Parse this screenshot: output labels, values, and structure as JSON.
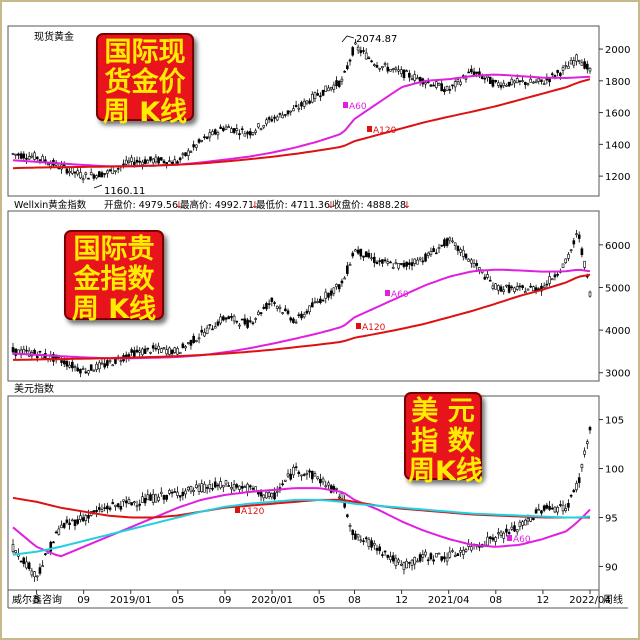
{
  "panels": {
    "gold": {
      "name": "现货黄金",
      "peak_label": "2074.87",
      "low_label": "1160.11",
      "ma60_label": "A60",
      "ma120_label": "A120",
      "badge": [
        "国际现",
        "货金价",
        "周  K线"
      ]
    },
    "index": {
      "info_prefix": "Wellxin黄金指数",
      "open_label": "开盘价: 4979.56",
      "high_label": "最高价: 4992.71",
      "low_label": "最低价: 4711.36",
      "close_label": "收盘价: 4888.28",
      "ma60_label": "A60",
      "ma120_label": "A120",
      "badge": [
        "国际贵",
        "金指数",
        "周  K线"
      ]
    },
    "usd": {
      "name": "美元指数",
      "ma60_label": "A60",
      "ma120_label": "A120",
      "badge": [
        "美  元",
        "指  数",
        "周K线"
      ]
    }
  },
  "footer": {
    "source": "威尔鑫咨询",
    "period": "周线"
  },
  "colors": {
    "candle": "#000000",
    "ma60": "#e020e0",
    "ma120": "#dd1111",
    "ma_cyan": "#20d0e0",
    "badge_bg": "#e8141b",
    "badge_text": "#ffec00"
  },
  "chart_data": [
    {
      "type": "line",
      "title": "现货黄金",
      "x": [
        "2018-03",
        "2018-05",
        "2018-07",
        "2018-09",
        "2018-11",
        "2019-01",
        "2019-03",
        "2019-05",
        "2019-07",
        "2019-09",
        "2019-11",
        "2020-01",
        "2020-03",
        "2020-05",
        "2020-07",
        "2020-08",
        "2020-10",
        "2020-12",
        "2021-02",
        "2021-04",
        "2021-06",
        "2021-08",
        "2021-10",
        "2021-12",
        "2022-02",
        "2022-03",
        "2022-04"
      ],
      "series": [
        {
          "name": "价格",
          "values": [
            1340,
            1320,
            1260,
            1200,
            1220,
            1290,
            1300,
            1290,
            1420,
            1510,
            1470,
            1560,
            1620,
            1720,
            1800,
            2020,
            1900,
            1850,
            1800,
            1740,
            1860,
            1780,
            1790,
            1790,
            1880,
            1950,
            1860
          ]
        },
        {
          "name": "A60",
          "values": [
            1300,
            1290,
            1280,
            1270,
            1262,
            1262,
            1266,
            1272,
            1286,
            1304,
            1322,
            1348,
            1380,
            1420,
            1470,
            1560,
            1660,
            1760,
            1800,
            1810,
            1830,
            1840,
            1830,
            1820,
            1818,
            1822,
            1826
          ]
        },
        {
          "name": "A120",
          "values": [
            1250,
            1254,
            1256,
            1258,
            1260,
            1262,
            1266,
            1272,
            1280,
            1292,
            1306,
            1322,
            1340,
            1362,
            1386,
            1420,
            1460,
            1500,
            1540,
            1574,
            1606,
            1640,
            1680,
            1720,
            1760,
            1790,
            1810
          ]
        }
      ],
      "annotations": [
        "2074.87",
        "1160.11"
      ],
      "ylim": [
        1100,
        2120
      ],
      "yticks": [
        1200,
        1400,
        1600,
        1800,
        2000
      ]
    },
    {
      "type": "line",
      "title": "Wellxin黄金指数",
      "x": [
        "2018-03",
        "2018-05",
        "2018-07",
        "2018-09",
        "2018-11",
        "2019-01",
        "2019-03",
        "2019-05",
        "2019-07",
        "2019-09",
        "2019-11",
        "2020-01",
        "2020-03",
        "2020-05",
        "2020-07",
        "2020-08",
        "2020-10",
        "2020-12",
        "2021-02",
        "2021-04",
        "2021-06",
        "2021-08",
        "2021-10",
        "2021-12",
        "2022-02",
        "2022-03",
        "2022-04"
      ],
      "series": [
        {
          "name": "价格",
          "values": [
            3500,
            3450,
            3300,
            3050,
            3200,
            3450,
            3550,
            3500,
            3900,
            4300,
            4150,
            4700,
            4200,
            4700,
            5100,
            5900,
            5600,
            5500,
            5700,
            6100,
            5600,
            5000,
            4950,
            5000,
            5600,
            6300,
            4890
          ]
        },
        {
          "name": "A60",
          "values": [
            3450,
            3420,
            3390,
            3360,
            3340,
            3340,
            3350,
            3370,
            3410,
            3480,
            3570,
            3680,
            3800,
            3930,
            4080,
            4300,
            4550,
            4800,
            5050,
            5250,
            5380,
            5420,
            5400,
            5370,
            5380,
            5420,
            5380
          ]
        },
        {
          "name": "A120",
          "values": [
            3300,
            3310,
            3320,
            3330,
            3340,
            3355,
            3370,
            3390,
            3415,
            3450,
            3490,
            3540,
            3600,
            3660,
            3730,
            3820,
            3920,
            4030,
            4150,
            4300,
            4450,
            4620,
            4800,
            4950,
            5120,
            5250,
            5300
          ]
        }
      ],
      "annotations": [
        "开盘价: 4979.56",
        "最高价: 4992.71",
        "最低价: 4711.36",
        "收盘价: 4888.28"
      ],
      "ylim": [
        2900,
        6700
      ],
      "yticks": [
        3000,
        4000,
        5000,
        6000
      ]
    },
    {
      "type": "line",
      "title": "美元指数",
      "x": [
        "2018-03",
        "2018-05",
        "2018-07",
        "2018-09",
        "2018-11",
        "2019-01",
        "2019-03",
        "2019-05",
        "2019-07",
        "2019-09",
        "2019-11",
        "2020-01",
        "2020-03",
        "2020-05",
        "2020-07",
        "2020-08",
        "2020-10",
        "2020-12",
        "2021-02",
        "2021-04",
        "2021-06",
        "2021-08",
        "2021-10",
        "2021-12",
        "2022-02",
        "2022-03",
        "2022-04"
      ],
      "series": [
        {
          "name": "价格",
          "values": [
            92,
            89,
            94,
            95,
            96,
            96.5,
            97,
            97.5,
            98,
            98.3,
            98,
            97,
            100,
            99,
            97,
            93,
            92,
            90,
            91,
            91,
            92,
            93,
            94,
            96,
            96,
            98.5,
            104
          ]
        },
        {
          "name": "A60",
          "values": [
            94,
            92,
            91,
            92,
            93,
            94,
            95,
            96,
            96.8,
            97.3,
            97.6,
            97.8,
            98,
            98,
            97.6,
            96.8,
            95.8,
            94.6,
            93.6,
            92.8,
            92.2,
            92,
            92.2,
            92.8,
            93.6,
            94.6,
            95.8
          ]
        },
        {
          "name": "A120",
          "values": [
            97,
            96.6,
            96,
            95.6,
            95.2,
            95,
            95,
            95.2,
            95.6,
            96,
            96.2,
            96.4,
            96.6,
            96.8,
            96.8,
            96.6,
            96.2,
            95.9,
            95.7,
            95.5,
            95.3,
            95.2,
            95.1,
            95,
            95,
            95,
            95
          ]
        },
        {
          "name": "",
          "values": [
            91.2,
            91.5,
            92,
            92.6,
            93.2,
            93.8,
            94.4,
            95,
            95.6,
            96.1,
            96.4,
            96.6,
            96.8,
            96.8,
            96.6,
            96.4,
            96.2,
            96,
            95.8,
            95.6,
            95.4,
            95.3,
            95.2,
            95.1,
            95,
            95,
            95.1
          ]
        }
      ],
      "ylim": [
        88,
        107
      ],
      "yticks": [
        90,
        95,
        100,
        105
      ]
    }
  ],
  "x_axis": {
    "tick_labels": [
      "5",
      "09",
      "2019/01",
      "05",
      "09",
      "2020/01",
      "05",
      "08",
      "12",
      "2021/04",
      "08",
      "12",
      "2022/04"
    ],
    "tick_x_values": [
      "2018-05",
      "2018-09",
      "2019-01",
      "2019-05",
      "2019-09",
      "2020-01",
      "2020-05",
      "2020-08",
      "2020-12",
      "2021-04",
      "2021-08",
      "2021-12",
      "2022-04"
    ]
  }
}
